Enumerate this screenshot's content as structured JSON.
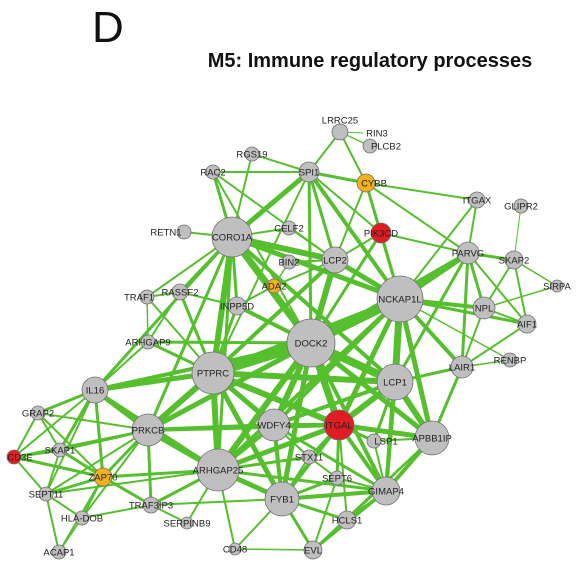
{
  "panel": {
    "letter": "D",
    "title": "M5: Immune regulatory processes"
  },
  "legend_colors": {
    "default": "#c0bfc0",
    "red": "#e11d24",
    "orange": "#f3b21c",
    "edge": "#55bf2d"
  },
  "nodes": [
    {
      "id": "LRRC25",
      "label": "LRRC25",
      "color": "default"
    },
    {
      "id": "RIN3",
      "label": "RIN3",
      "color": "default"
    },
    {
      "id": "PLCB2",
      "label": "PLCB2",
      "color": "default"
    },
    {
      "id": "RGS19",
      "label": "RGS19",
      "color": "default"
    },
    {
      "id": "SPI1",
      "label": "SPI1",
      "color": "default"
    },
    {
      "id": "CYBB",
      "label": "CYBB",
      "color": "orange"
    },
    {
      "id": "RAC2",
      "label": "RAC2",
      "color": "default"
    },
    {
      "id": "ITGAX",
      "label": "ITGAX",
      "color": "default"
    },
    {
      "id": "GLIPR2",
      "label": "GLIPR2",
      "color": "default"
    },
    {
      "id": "RETN1",
      "label": "RETN1",
      "color": "default"
    },
    {
      "id": "CORO1A",
      "label": "CORO1A",
      "color": "default"
    },
    {
      "id": "CELF2",
      "label": "CELF2",
      "color": "default"
    },
    {
      "id": "PIK3CD",
      "label": "PIK3CD",
      "color": "red"
    },
    {
      "id": "PARVG",
      "label": "PARVG",
      "color": "default"
    },
    {
      "id": "SKAP2",
      "label": "SKAP2",
      "color": "default"
    },
    {
      "id": "BIN2",
      "label": "BIN2",
      "color": "default"
    },
    {
      "id": "LCP2",
      "label": "LCP2",
      "color": "default"
    },
    {
      "id": "ADA2",
      "label": "ADA2",
      "color": "orange"
    },
    {
      "id": "SIRPA",
      "label": "SIRPA",
      "color": "default"
    },
    {
      "id": "TRAF1",
      "label": "TRAF1",
      "color": "default"
    },
    {
      "id": "RASSF2",
      "label": "RASSF2",
      "color": "default"
    },
    {
      "id": "INPP5D",
      "label": "INPP5D",
      "color": "default"
    },
    {
      "id": "NCKAP1L",
      "label": "NCKAP1L",
      "color": "default"
    },
    {
      "id": "NPL",
      "label": "NPL",
      "color": "default"
    },
    {
      "id": "AIF1",
      "label": "AIF1",
      "color": "default"
    },
    {
      "id": "ARHGAP9",
      "label": "ARHGAP9",
      "color": "default"
    },
    {
      "id": "DOCK2",
      "label": "DOCK2",
      "color": "default"
    },
    {
      "id": "RENBP",
      "label": "RENBP",
      "color": "default"
    },
    {
      "id": "LAIR1",
      "label": "LAIR1",
      "color": "default"
    },
    {
      "id": "PTPRC",
      "label": "PTPRC",
      "color": "default"
    },
    {
      "id": "IL16",
      "label": "IL16",
      "color": "default"
    },
    {
      "id": "LCP1",
      "label": "LCP1",
      "color": "default"
    },
    {
      "id": "GRAP2",
      "label": "GRAP2",
      "color": "default"
    },
    {
      "id": "PRKCB",
      "label": "PRKCB",
      "color": "default"
    },
    {
      "id": "WDFY4",
      "label": "WDFY4",
      "color": "default"
    },
    {
      "id": "ITGAL",
      "label": "ITGAL",
      "color": "red"
    },
    {
      "id": "LSP1",
      "label": "LSP1",
      "color": "default"
    },
    {
      "id": "APBB1IP",
      "label": "APBB1IP",
      "color": "default"
    },
    {
      "id": "CD3E",
      "label": "CD3E",
      "color": "red"
    },
    {
      "id": "SKAP1",
      "label": "SKAP1",
      "color": "default"
    },
    {
      "id": "ZAP70",
      "label": "ZAP70",
      "color": "orange"
    },
    {
      "id": "ARHGAP25",
      "label": "ARHGAP25",
      "color": "default"
    },
    {
      "id": "STX11",
      "label": "STX11",
      "color": "default"
    },
    {
      "id": "SEPT6",
      "label": "SEPT6",
      "color": "default"
    },
    {
      "id": "GIMAP4",
      "label": "GIMAP4",
      "color": "default"
    },
    {
      "id": "SEPT11",
      "label": "SEPT11",
      "color": "default"
    },
    {
      "id": "TRAF3IP3",
      "label": "TRAF3IP3",
      "color": "default"
    },
    {
      "id": "HLA-DOB",
      "label": "HLA-DOB",
      "color": "default"
    },
    {
      "id": "FYB1",
      "label": "FYB1",
      "color": "default"
    },
    {
      "id": "SERPINB9",
      "label": "SERPINB9",
      "color": "default"
    },
    {
      "id": "HCLS1",
      "label": "HCLS1",
      "color": "default"
    },
    {
      "id": "ACAP1",
      "label": "ACAP1",
      "color": "default"
    },
    {
      "id": "CD48",
      "label": "CD48",
      "color": "default"
    },
    {
      "id": "EVL",
      "label": "EVL",
      "color": "default"
    }
  ]
}
